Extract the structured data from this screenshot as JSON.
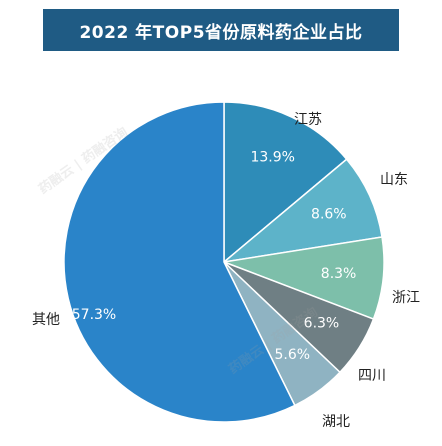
{
  "chart_data": {
    "type": "pie",
    "title": "2022 年TOP5省份原料药企业占比",
    "slices": [
      {
        "label": "江苏",
        "value": 13.9,
        "value_label": "13.9%",
        "color": "#2e8cb8"
      },
      {
        "label": "山东",
        "value": 8.6,
        "value_label": "8.6%",
        "color": "#5db3c9"
      },
      {
        "label": "浙江",
        "value": 8.3,
        "value_label": "8.3%",
        "color": "#7dbfaa"
      },
      {
        "label": "四川",
        "value": 6.3,
        "value_label": "6.3%",
        "color": "#6f7f84"
      },
      {
        "label": "湖北",
        "value": 5.6,
        "value_label": "5.6%",
        "color": "#8fb3c2"
      },
      {
        "label": "其他",
        "value": 57.3,
        "value_label": "57.3%",
        "color": "#2a84c9"
      }
    ],
    "start_angle_deg": 0,
    "direction": "clockwise",
    "legend": "none"
  },
  "watermark": "药融云 | 药融咨询"
}
